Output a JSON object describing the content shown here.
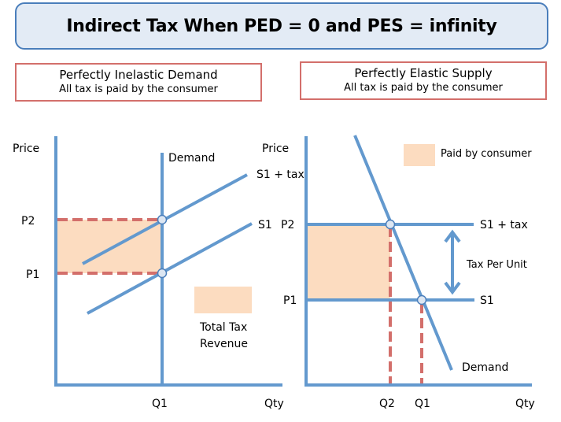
{
  "title": "Indirect Tax When PED = 0 and PES = infinity",
  "left_panel": {
    "heading": "Perfectly Inelastic Demand",
    "subheading": "All tax is paid by the consumer",
    "y_axis_label": "Price",
    "x_axis_label": "Qty",
    "price_labels": [
      "P2",
      "P1"
    ],
    "quantity_labels": [
      "Q1"
    ],
    "curves": {
      "demand": "Demand",
      "supply_tax": "S1 + tax",
      "supply": "S1"
    },
    "legend_label_line1": "Total Tax",
    "legend_label_line2": "Revenue"
  },
  "right_panel": {
    "heading": "Perfectly Elastic Supply",
    "subheading": "All tax is paid by the consumer",
    "y_axis_label": "Price",
    "x_axis_label": "Qty",
    "price_labels": [
      "P2",
      "P1"
    ],
    "quantity_labels": [
      "Q2",
      "Q1"
    ],
    "curves": {
      "demand": "Demand",
      "supply_tax": "S1 + tax",
      "supply": "S1"
    },
    "arrow_label": "Tax Per Unit",
    "legend_label": "Paid by consumer"
  },
  "colors": {
    "line": "#6399ce",
    "dash": "#d36f6b",
    "fill": "#fcdcc0",
    "title_bg": "#e3ebf5",
    "title_border": "#4a7ebb",
    "point_fill": "#dce6f2"
  }
}
